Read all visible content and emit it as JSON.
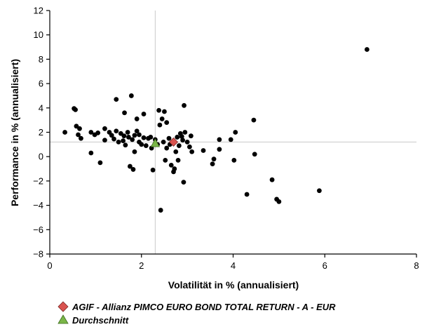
{
  "chart_data": {
    "type": "scatter",
    "xlabel": "Volatilität in % (annualisiert)",
    "ylabel": "Performance in % (annualisiert)",
    "xlim": [
      0,
      8
    ],
    "ylim": [
      -8,
      12
    ],
    "xticks": [
      "0",
      "2",
      "4",
      "6",
      "8"
    ],
    "yticks": [
      "12",
      "10",
      "8",
      "6",
      "4",
      "2",
      "0",
      "−2",
      "−4",
      "−6",
      "−8"
    ],
    "grid": false,
    "reference_lines": {
      "x": 2.3,
      "y": 1.2
    },
    "series": [
      {
        "name": "",
        "marker": "circle",
        "color": "#000000",
        "points": [
          [
            0.33,
            2.0
          ],
          [
            0.53,
            3.95
          ],
          [
            0.56,
            3.85
          ],
          [
            0.58,
            2.5
          ],
          [
            0.62,
            1.8
          ],
          [
            0.68,
            1.5
          ],
          [
            0.65,
            2.3
          ],
          [
            0.9,
            2.0
          ],
          [
            0.9,
            0.3
          ],
          [
            0.98,
            1.8
          ],
          [
            1.05,
            1.95
          ],
          [
            1.1,
            -0.5
          ],
          [
            1.2,
            2.3
          ],
          [
            1.2,
            1.35
          ],
          [
            1.3,
            2.0
          ],
          [
            1.35,
            1.75
          ],
          [
            1.4,
            1.45
          ],
          [
            1.45,
            2.1
          ],
          [
            1.45,
            4.7
          ],
          [
            1.5,
            1.2
          ],
          [
            1.55,
            1.9
          ],
          [
            1.6,
            1.3
          ],
          [
            1.62,
            1.7
          ],
          [
            1.63,
            3.6
          ],
          [
            1.65,
            0.95
          ],
          [
            1.7,
            2.0
          ],
          [
            1.72,
            1.6
          ],
          [
            1.75,
            -0.8
          ],
          [
            1.78,
            5.0
          ],
          [
            1.8,
            1.4
          ],
          [
            1.82,
            -1.05
          ],
          [
            1.85,
            1.75
          ],
          [
            1.85,
            0.4
          ],
          [
            1.9,
            2.1
          ],
          [
            1.9,
            3.1
          ],
          [
            1.95,
            1.8
          ],
          [
            1.95,
            1.2
          ],
          [
            2.0,
            1.0
          ],
          [
            2.05,
            3.5
          ],
          [
            2.05,
            1.55
          ],
          [
            2.1,
            0.9
          ],
          [
            2.15,
            1.5
          ],
          [
            2.2,
            1.6
          ],
          [
            2.22,
            0.7
          ],
          [
            2.25,
            -1.1
          ],
          [
            2.3,
            1.4
          ],
          [
            2.35,
            1.0
          ],
          [
            2.38,
            3.8
          ],
          [
            2.4,
            2.6
          ],
          [
            2.42,
            -4.4
          ],
          [
            2.45,
            3.1
          ],
          [
            2.48,
            1.2
          ],
          [
            2.5,
            3.7
          ],
          [
            2.52,
            -0.3
          ],
          [
            2.55,
            2.8
          ],
          [
            2.55,
            0.7
          ],
          [
            2.6,
            1.5
          ],
          [
            2.62,
            1.0
          ],
          [
            2.65,
            -0.7
          ],
          [
            2.7,
            -1.25
          ],
          [
            2.72,
            -1.0
          ],
          [
            2.75,
            0.4
          ],
          [
            2.78,
            1.6
          ],
          [
            2.8,
            -0.3
          ],
          [
            2.82,
            0.9
          ],
          [
            2.85,
            1.9
          ],
          [
            2.88,
            1.65
          ],
          [
            2.9,
            1.35
          ],
          [
            2.92,
            -2.1
          ],
          [
            2.93,
            4.2
          ],
          [
            2.95,
            2.0
          ],
          [
            3.0,
            1.2
          ],
          [
            3.05,
            0.8
          ],
          [
            3.08,
            1.7
          ],
          [
            3.1,
            0.4
          ],
          [
            3.35,
            0.5
          ],
          [
            3.55,
            -0.6
          ],
          [
            3.58,
            -0.2
          ],
          [
            3.7,
            0.6
          ],
          [
            3.7,
            1.4
          ],
          [
            3.95,
            1.4
          ],
          [
            4.02,
            -0.3
          ],
          [
            4.05,
            2.0
          ],
          [
            4.3,
            -3.1
          ],
          [
            4.45,
            3.0
          ],
          [
            4.47,
            0.2
          ],
          [
            4.85,
            -1.9
          ],
          [
            4.95,
            -3.5
          ],
          [
            5.0,
            -3.7
          ],
          [
            5.88,
            -2.8
          ],
          [
            6.92,
            8.8
          ]
        ]
      }
    ],
    "highlights": [
      {
        "name": "AGIF - Allianz PIMCO EURO BOND TOTAL RETURN - A - EUR",
        "marker": "diamond",
        "color": "#d9534f",
        "x": 2.7,
        "y": 1.2
      },
      {
        "name": "Durchschnitt",
        "marker": "triangle",
        "color": "#7ab648",
        "x": 2.3,
        "y": 1.1
      }
    ],
    "legend": {
      "placement": "bottom-left",
      "entries": [
        {
          "label": "AGIF - Allianz PIMCO EURO BOND TOTAL RETURN - A - EUR",
          "marker": "diamond",
          "color": "#d9534f"
        },
        {
          "label": "Durchschnitt",
          "marker": "triangle",
          "color": "#7ab648"
        }
      ]
    }
  }
}
